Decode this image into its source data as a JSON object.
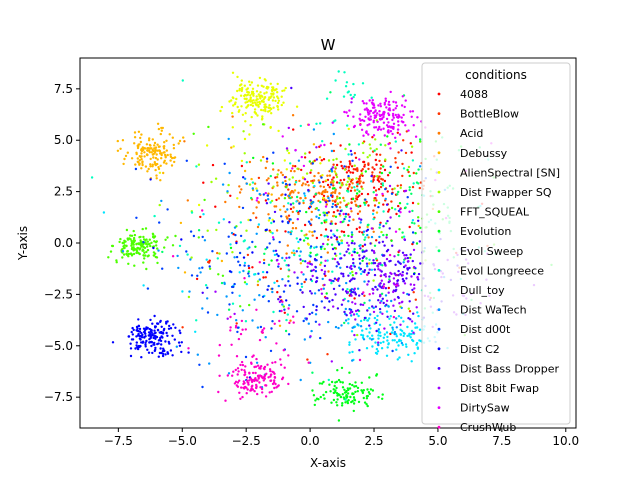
{
  "chart_data": {
    "type": "scatter",
    "title": "W",
    "xlabel": "X-axis",
    "ylabel": "Y-axis",
    "xlim": [
      -9.0,
      10.4
    ],
    "ylim": [
      -9.0,
      9.0
    ],
    "xticks": [
      -7.5,
      -5.0,
      -2.5,
      0.0,
      2.5,
      5.0,
      7.5,
      10.0
    ],
    "xtick_labels": [
      "−7.5",
      "−5.0",
      "−2.5",
      "0.0",
      "2.5",
      "5.0",
      "7.5",
      "10.0"
    ],
    "yticks": [
      -7.5,
      -5.0,
      -2.5,
      0.0,
      2.5,
      5.0,
      7.5
    ],
    "ytick_labels": [
      "−7.5",
      "−5.0",
      "−2.5",
      "0.0",
      "2.5",
      "5.0",
      "7.5"
    ],
    "grid": false,
    "legend": {
      "title": "conditions",
      "placement": "upper-right"
    },
    "seed": 20240611,
    "series": [
      {
        "name": "4088",
        "color": "#ff0000",
        "clusters": [
          {
            "center": [
              1.5,
              2.8
            ],
            "spread": [
              1.1,
              1.0
            ],
            "count": 120
          },
          {
            "center": [
              0.5,
              0.5
            ],
            "spread": [
              2.5,
              2.5
            ],
            "count": 50
          }
        ]
      },
      {
        "name": "BottleBlow",
        "color": "#ff3300",
        "clusters": [
          {
            "center": [
              2.5,
              3.0
            ],
            "spread": [
              1.0,
              0.8
            ],
            "count": 80
          },
          {
            "center": [
              0.5,
              0.0
            ],
            "spread": [
              2.5,
              2.5
            ],
            "count": 50
          }
        ]
      },
      {
        "name": "Acid",
        "color": "#ff7a00",
        "clusters": [
          {
            "center": [
              -0.5,
              2.5
            ],
            "spread": [
              1.2,
              0.8
            ],
            "count": 130
          },
          {
            "center": [
              0.0,
              1.0
            ],
            "spread": [
              2.0,
              2.0
            ],
            "count": 40
          }
        ]
      },
      {
        "name": "Debussy",
        "color": "#ffb800",
        "clusters": [
          {
            "center": [
              -6.2,
              4.4
            ],
            "spread": [
              0.5,
              0.5
            ],
            "count": 150
          },
          {
            "center": [
              -1.0,
              1.0
            ],
            "spread": [
              2.5,
              2.5
            ],
            "count": 30
          }
        ]
      },
      {
        "name": "AlienSpectral [SN]",
        "color": "#e8ff00",
        "clusters": [
          {
            "center": [
              -2.1,
              7.0
            ],
            "spread": [
              0.55,
              0.45
            ],
            "count": 170
          },
          {
            "center": [
              -0.5,
              3.5
            ],
            "spread": [
              2.0,
              2.0
            ],
            "count": 30
          }
        ]
      },
      {
        "name": "Dist Fwapper SQ",
        "color": "#9cff00",
        "clusters": [
          {
            "center": [
              1.0,
              3.5
            ],
            "spread": [
              1.5,
              1.0
            ],
            "count": 60
          },
          {
            "center": [
              0.0,
              0.0
            ],
            "spread": [
              3.0,
              2.5
            ],
            "count": 40
          }
        ]
      },
      {
        "name": "FFT_SQUEAL",
        "color": "#4dff00",
        "clusters": [
          {
            "center": [
              -6.7,
              -0.2
            ],
            "spread": [
              0.5,
              0.35
            ],
            "count": 150
          },
          {
            "center": [
              -1.0,
              0.0
            ],
            "spread": [
              3.0,
              2.5
            ],
            "count": 30
          }
        ]
      },
      {
        "name": "Evolution",
        "color": "#00ff18",
        "clusters": [
          {
            "center": [
              1.4,
              -7.3
            ],
            "spread": [
              0.6,
              0.4
            ],
            "count": 110
          },
          {
            "center": [
              2.5,
              1.5
            ],
            "spread": [
              2.0,
              2.0
            ],
            "count": 60
          }
        ]
      },
      {
        "name": "Evol Sweep",
        "color": "#00ff6a",
        "clusters": [
          {
            "center": [
              3.0,
              1.5
            ],
            "spread": [
              2.0,
              2.0
            ],
            "count": 80
          },
          {
            "center": [
              0.0,
              -1.0
            ],
            "spread": [
              3.0,
              2.5
            ],
            "count": 30
          }
        ]
      },
      {
        "name": "Evol Longreece",
        "color": "#00ffc0",
        "clusters": [
          {
            "center": [
              0.5,
              0.5
            ],
            "spread": [
              3.0,
              2.8
            ],
            "count": 100
          },
          {
            "center": [
              1.5,
              7.5
            ],
            "spread": [
              0.4,
              0.5
            ],
            "count": 15
          }
        ]
      },
      {
        "name": "Dull_toy",
        "color": "#00e5ff",
        "clusters": [
          {
            "center": [
              3.2,
              -4.5
            ],
            "spread": [
              0.9,
              0.6
            ],
            "count": 130
          },
          {
            "center": [
              0.0,
              -1.0
            ],
            "spread": [
              3.0,
              2.5
            ],
            "count": 40
          }
        ]
      },
      {
        "name": "Dist WaTech",
        "color": "#0099ff",
        "clusters": [
          {
            "center": [
              -0.5,
              -1.0
            ],
            "spread": [
              2.5,
              2.5
            ],
            "count": 130
          },
          {
            "center": [
              3.0,
              -4.0
            ],
            "spread": [
              1.0,
              0.8
            ],
            "count": 30
          }
        ]
      },
      {
        "name": "Dist d00t",
        "color": "#0040ff",
        "clusters": [
          {
            "center": [
              -1.0,
              -0.5
            ],
            "spread": [
              2.5,
              2.5
            ],
            "count": 150
          }
        ]
      },
      {
        "name": "Dist C2",
        "color": "#0000ff",
        "clusters": [
          {
            "center": [
              -6.2,
              -4.6
            ],
            "spread": [
              0.55,
              0.45
            ],
            "count": 170
          },
          {
            "center": [
              -1.0,
              -1.0
            ],
            "spread": [
              2.5,
              2.5
            ],
            "count": 30
          }
        ]
      },
      {
        "name": "Dist Bass Dropper",
        "color": "#4800ff",
        "clusters": [
          {
            "center": [
              2.5,
              -1.5
            ],
            "spread": [
              1.2,
              1.0
            ],
            "count": 170
          },
          {
            "center": [
              0.5,
              -0.5
            ],
            "spread": [
              2.5,
              2.5
            ],
            "count": 50
          }
        ]
      },
      {
        "name": "Dist 8bit Fwap",
        "color": "#a000ff",
        "clusters": [
          {
            "center": [
              3.5,
              -2.0
            ],
            "spread": [
              1.5,
              1.2
            ],
            "count": 120
          },
          {
            "center": [
              1.0,
              0.0
            ],
            "spread": [
              2.5,
              2.5
            ],
            "count": 40
          }
        ]
      },
      {
        "name": "DirtySaw",
        "color": "#e600ff",
        "clusters": [
          {
            "center": [
              2.9,
              6.2
            ],
            "spread": [
              0.6,
              0.5
            ],
            "count": 160
          },
          {
            "center": [
              1.5,
              3.0
            ],
            "spread": [
              2.0,
              2.0
            ],
            "count": 30
          }
        ]
      },
      {
        "name": "CrushWub",
        "color": "#ff00c8",
        "clusters": [
          {
            "center": [
              -2.1,
              -6.6
            ],
            "spread": [
              0.5,
              0.4
            ],
            "count": 130
          },
          {
            "center": [
              -2.0,
              -5.0
            ],
            "spread": [
              1.0,
              1.2
            ],
            "count": 40
          },
          {
            "center": [
              0.0,
              -2.0
            ],
            "spread": [
              2.5,
              2.5
            ],
            "count": 20
          }
        ]
      }
    ]
  }
}
